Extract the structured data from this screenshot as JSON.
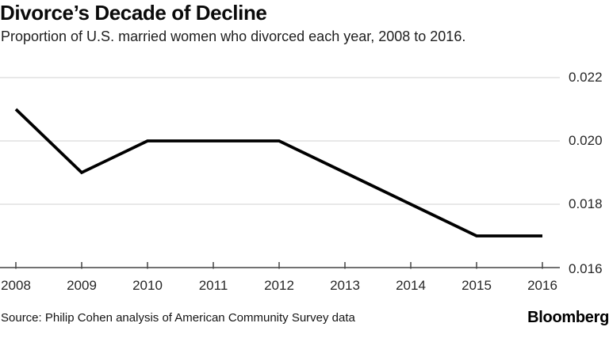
{
  "header": {
    "title": "Divorce’s Decade of Decline",
    "subtitle": "Proportion of U.S. married women who divorced each year, 2008 to 2016."
  },
  "chart_data": {
    "type": "line",
    "title": "Divorce’s Decade of Decline",
    "subtitle": "Proportion of U.S. married women who divorced each year, 2008 to 2016.",
    "x": [
      2008,
      2009,
      2010,
      2011,
      2012,
      2013,
      2014,
      2015,
      2016
    ],
    "values": [
      0.021,
      0.019,
      0.02,
      0.02,
      0.02,
      0.019,
      0.018,
      0.017,
      0.017
    ],
    "x_tick_labels": [
      "2008",
      "2009",
      "2010",
      "2011",
      "2012",
      "2013",
      "2014",
      "2015",
      "2016"
    ],
    "y_ticks_top_to_bottom": [
      0.022,
      0.02,
      0.018,
      0.016
    ],
    "y_tick_labels_top_to_bottom": [
      "0.022",
      "0.020",
      "0.018",
      "0.016"
    ],
    "xlabel": "",
    "ylabel": "",
    "ylim": [
      0.016,
      0.0225
    ],
    "grid": "horizontal",
    "legend": "none",
    "colors": {
      "line": "#000000",
      "gridline": "#d9d9d9",
      "axis": "#444444",
      "tick_label": "#262626"
    }
  },
  "footer": {
    "source": "Source: Philip Cohen analysis of American Community Survey data",
    "brand": "Bloomberg"
  }
}
